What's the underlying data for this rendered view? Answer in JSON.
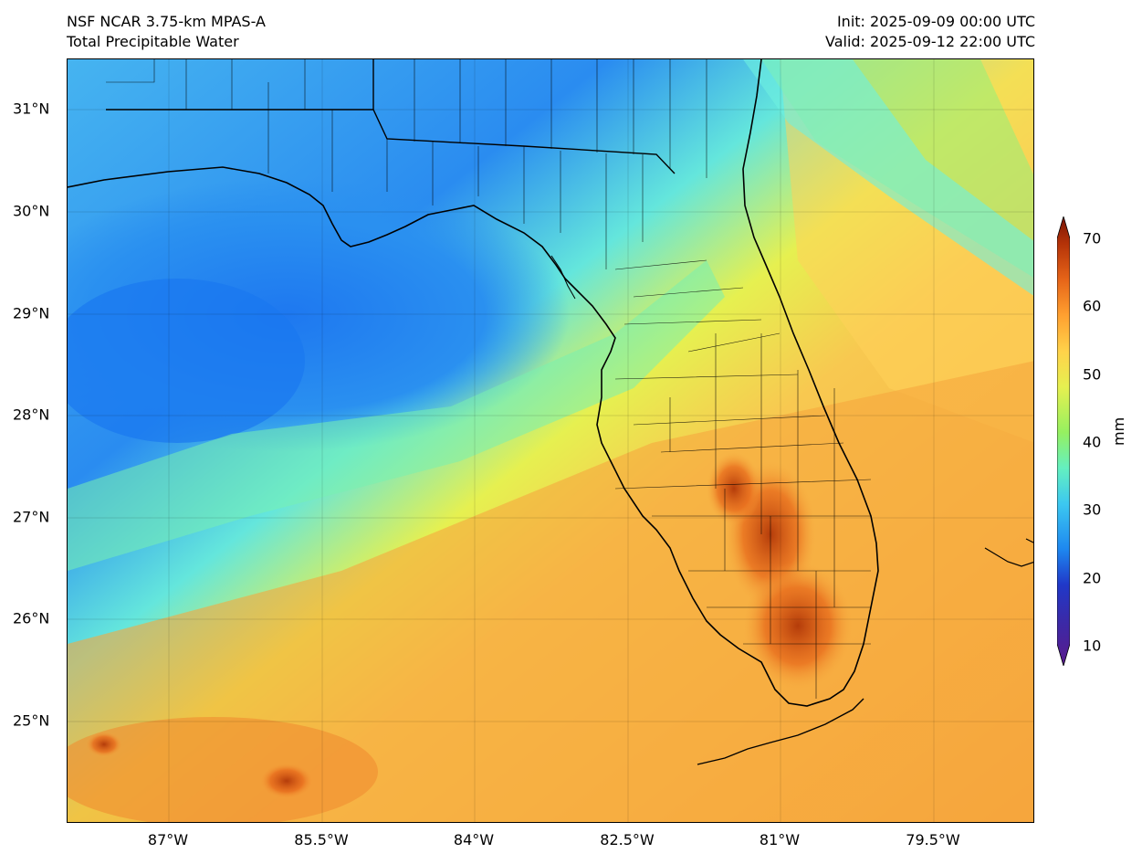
{
  "header": {
    "left_line1": "NSF NCAR 3.75-km MPAS-A",
    "left_line2": "Total Precipitable Water",
    "right_line1": "Init: 2025-09-09 00:00 UTC",
    "right_line2": "Valid: 2025-09-12 22:00 UTC"
  },
  "axes": {
    "lat_labels": [
      "31°N",
      "30°N",
      "29°N",
      "28°N",
      "27°N",
      "26°N",
      "25°N"
    ],
    "lon_labels": [
      "87°W",
      "85.5°W",
      "84°W",
      "82.5°W",
      "81°W",
      "79.5°W"
    ]
  },
  "colorbar": {
    "unit": "mm",
    "ticks": [
      "70",
      "60",
      "50",
      "40",
      "30",
      "20",
      "10"
    ],
    "min": 10,
    "max": 70,
    "colors": [
      "#5a1a8c",
      "#2038c8",
      "#1e88f0",
      "#3cc8f0",
      "#64f0c0",
      "#96f060",
      "#e6f050",
      "#ffd24a",
      "#ffa030",
      "#e66418",
      "#b43208",
      "#781405"
    ]
  },
  "colors": {
    "gulf_dry": "#1e82f0",
    "north_moist": "#46b4f0",
    "transition": "#64e6dc",
    "humid": "#f8c850",
    "very_humid": "#f6a43c",
    "peak": "#c8500f"
  }
}
